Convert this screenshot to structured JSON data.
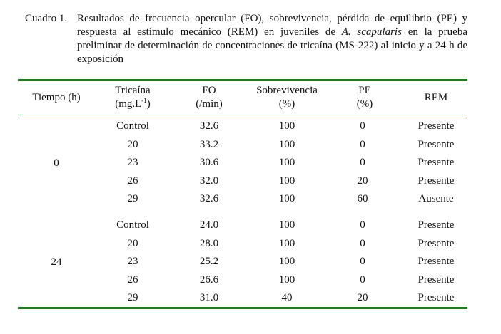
{
  "caption": {
    "label": "Cuadro 1.",
    "text_before": "Resultados de frecuencia opercular (FO), sobrevivencia, pérdida de equilibrio (PE) y respuesta al estímulo mecánico (REM) en juveniles de ",
    "species": "A. scapularis",
    "text_after": " en la prueba preliminar de determinación de concentraciones de tricaína (MS-222) al inicio y a 24 h de exposición"
  },
  "headers": {
    "tiempo": "Tiempo (h)",
    "tricaina_1": "Tricaína",
    "tricaina_2": "(mg.L",
    "tricaina_sup": "-1",
    "tricaina_3": ")",
    "fo_1": "FO",
    "fo_2": "(/min)",
    "sob_1": "Sobrevivencia",
    "sob_2": "(%)",
    "pe_1": "PE",
    "pe_2": "(%)",
    "rem": "REM"
  },
  "groups": [
    {
      "tiempo": "0",
      "rows": [
        {
          "tricaina": "Control",
          "fo": "32.6",
          "sob": "100",
          "pe": "0",
          "rem": "Presente"
        },
        {
          "tricaina": "20",
          "fo": "33.2",
          "sob": "100",
          "pe": "0",
          "rem": "Presente"
        },
        {
          "tricaina": "23",
          "fo": "30.6",
          "sob": "100",
          "pe": "0",
          "rem": "Presente"
        },
        {
          "tricaina": "26",
          "fo": "32.0",
          "sob": "100",
          "pe": "20",
          "rem": "Presente"
        },
        {
          "tricaina": "29",
          "fo": "32.6",
          "sob": "100",
          "pe": "60",
          "rem": "Ausente"
        }
      ]
    },
    {
      "tiempo": "24",
      "rows": [
        {
          "tricaina": "Control",
          "fo": "24.0",
          "sob": "100",
          "pe": "0",
          "rem": "Presente"
        },
        {
          "tricaina": "20",
          "fo": "28.0",
          "sob": "100",
          "pe": "0",
          "rem": "Presente"
        },
        {
          "tricaina": "23",
          "fo": "25.2",
          "sob": "100",
          "pe": "0",
          "rem": "Presente"
        },
        {
          "tricaina": "26",
          "fo": "26.6",
          "sob": "100",
          "pe": "0",
          "rem": "Presente"
        },
        {
          "tricaina": "29",
          "fo": "31.0",
          "sob": "40",
          "pe": "20",
          "rem": "Presente"
        }
      ]
    }
  ]
}
